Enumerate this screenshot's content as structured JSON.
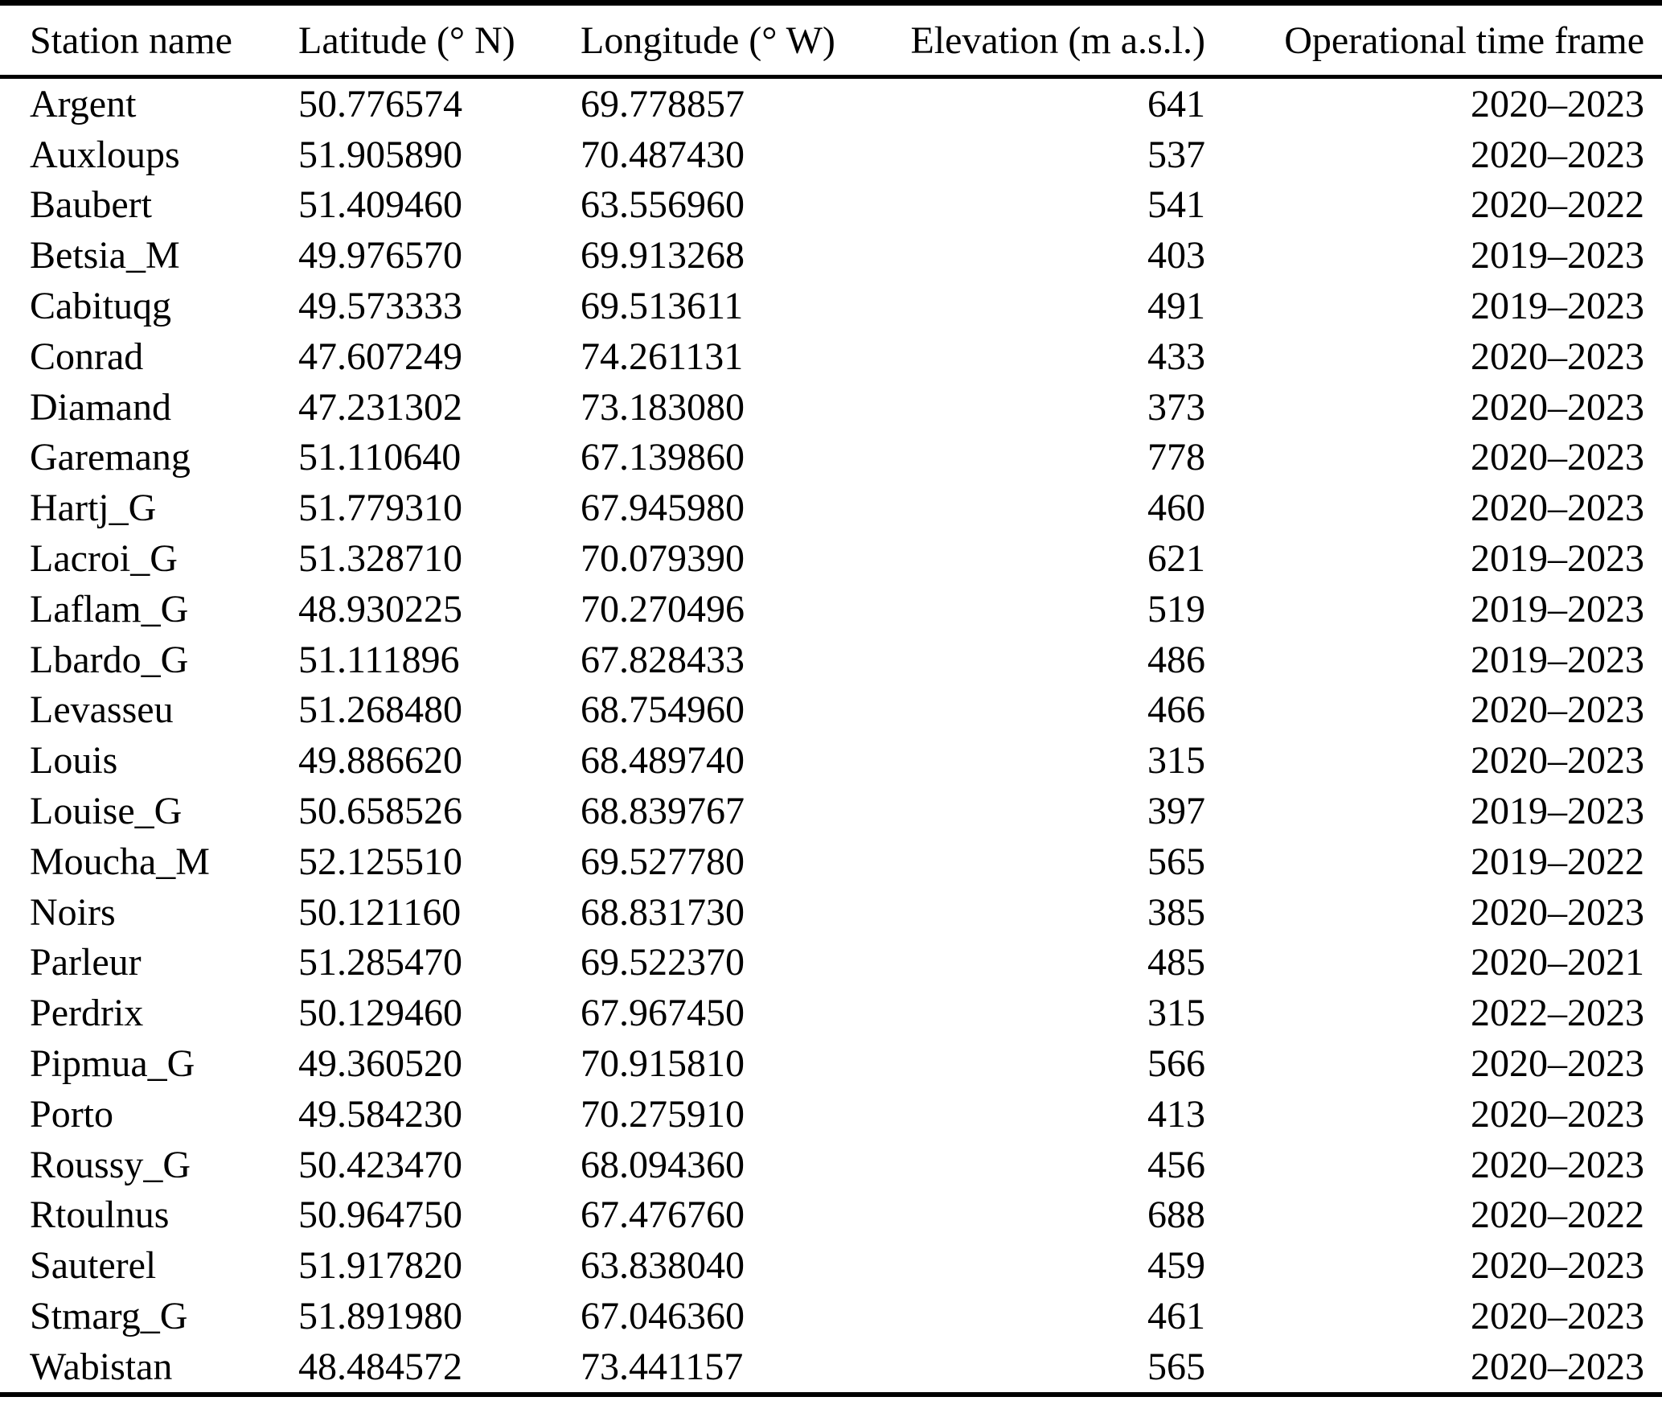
{
  "colors": {
    "background": "#ffffff",
    "text": "#000000",
    "rule": "#000000"
  },
  "table": {
    "columns": [
      {
        "label": "Station name",
        "align": "left"
      },
      {
        "label": "Latitude (° N)",
        "align": "left"
      },
      {
        "label": "Longitude (° W)",
        "align": "left"
      },
      {
        "label": "Elevation (m a.s.l.)",
        "align": "right"
      },
      {
        "label": "Operational time frame",
        "align": "right"
      }
    ],
    "rows": [
      [
        "Argent",
        "50.776574",
        "69.778857",
        "641",
        "2020–2023"
      ],
      [
        "Auxloups",
        "51.905890",
        "70.487430",
        "537",
        "2020–2023"
      ],
      [
        "Baubert",
        "51.409460",
        "63.556960",
        "541",
        "2020–2022"
      ],
      [
        "Betsia_M",
        "49.976570",
        "69.913268",
        "403",
        "2019–2023"
      ],
      [
        "Cabituqg",
        "49.573333",
        "69.513611",
        "491",
        "2019–2023"
      ],
      [
        "Conrad",
        "47.607249",
        "74.261131",
        "433",
        "2020–2023"
      ],
      [
        "Diamand",
        "47.231302",
        "73.183080",
        "373",
        "2020–2023"
      ],
      [
        "Garemang",
        "51.110640",
        "67.139860",
        "778",
        "2020–2023"
      ],
      [
        "Hartj_G",
        "51.779310",
        "67.945980",
        "460",
        "2020–2023"
      ],
      [
        "Lacroi_G",
        "51.328710",
        "70.079390",
        "621",
        "2019–2023"
      ],
      [
        "Laflam_G",
        "48.930225",
        "70.270496",
        "519",
        "2019–2023"
      ],
      [
        "Lbardo_G",
        "51.111896",
        "67.828433",
        "486",
        "2019–2023"
      ],
      [
        "Levasseu",
        "51.268480",
        "68.754960",
        "466",
        "2020–2023"
      ],
      [
        "Louis",
        "49.886620",
        "68.489740",
        "315",
        "2020–2023"
      ],
      [
        "Louise_G",
        "50.658526",
        "68.839767",
        "397",
        "2019–2023"
      ],
      [
        "Moucha_M",
        "52.125510",
        "69.527780",
        "565",
        "2019–2022"
      ],
      [
        "Noirs",
        "50.121160",
        "68.831730",
        "385",
        "2020–2023"
      ],
      [
        "Parleur",
        "51.285470",
        "69.522370",
        "485",
        "2020–2021"
      ],
      [
        "Perdrix",
        "50.129460",
        "67.967450",
        "315",
        "2022–2023"
      ],
      [
        "Pipmua_G",
        "49.360520",
        "70.915810",
        "566",
        "2020–2023"
      ],
      [
        "Porto",
        "49.584230",
        "70.275910",
        "413",
        "2020–2023"
      ],
      [
        "Roussy_G",
        "50.423470",
        "68.094360",
        "456",
        "2020–2023"
      ],
      [
        "Rtoulnus",
        "50.964750",
        "67.476760",
        "688",
        "2020–2022"
      ],
      [
        "Sauterel",
        "51.917820",
        "63.838040",
        "459",
        "2020–2023"
      ],
      [
        "Stmarg_G",
        "51.891980",
        "67.046360",
        "461",
        "2020–2023"
      ],
      [
        "Wabistan",
        "48.484572",
        "73.441157",
        "565",
        "2020–2023"
      ]
    ]
  }
}
